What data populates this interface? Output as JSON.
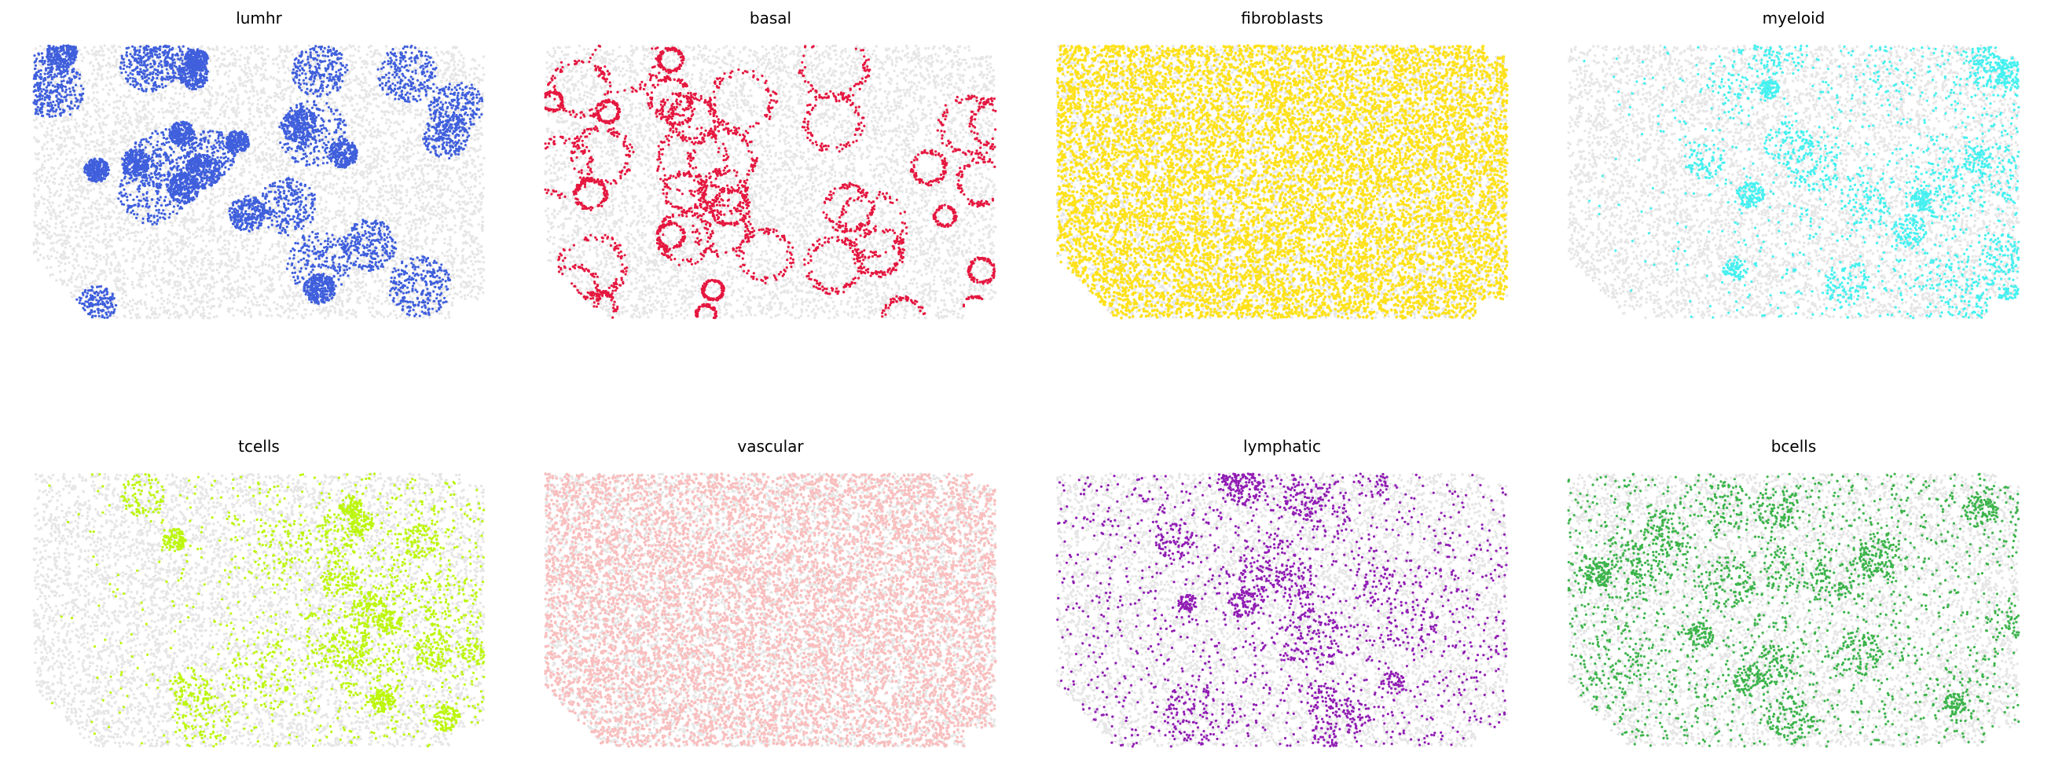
{
  "chart_data": {
    "type": "spatial-panels",
    "background_color": "#e6e6e6",
    "panels": [
      {
        "title": "lumhr",
        "color": "#3f5fdc"
      },
      {
        "title": "basal",
        "color": "#e5173f"
      },
      {
        "title": "fibroblasts",
        "color": "#ffe119"
      },
      {
        "title": "myeloid",
        "color": "#46f0f0"
      },
      {
        "title": "tcells",
        "color": "#bcf60c"
      },
      {
        "title": "vascular",
        "color": "#fabebe"
      },
      {
        "title": "lymphatic",
        "color": "#911eb4"
      },
      {
        "title": "bcells",
        "color": "#3cb44b"
      }
    ]
  }
}
